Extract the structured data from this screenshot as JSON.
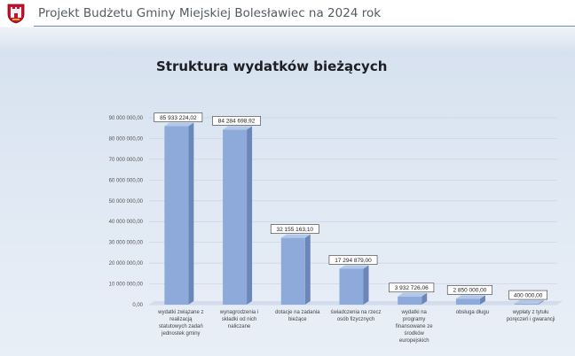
{
  "header": {
    "title": "Projekt Budżetu Gminy Miejskiej Bolesławiec na 2024 rok",
    "crest_icon": "city-coat-of-arms"
  },
  "colors": {
    "bar_front": "#8eaadb",
    "bar_side": "#6b86b8",
    "bar_top": "#b3c7e8",
    "accent_rule": "#6f8bb4"
  },
  "chart_data": {
    "type": "bar",
    "title": "Struktura wydatków bieżących",
    "xlabel": "",
    "ylabel": "",
    "ylim": [
      0,
      90000000
    ],
    "grid": true,
    "yticks": [
      0,
      10000000,
      20000000,
      30000000,
      40000000,
      50000000,
      60000000,
      70000000,
      80000000,
      90000000
    ],
    "ytick_labels": [
      "0,00",
      "10 000 000,00",
      "20 000 000,00",
      "30 000 000,00",
      "40 000 000,00",
      "50 000 000,00",
      "60 000 000,00",
      "70 000 000,00",
      "80 000 000,00",
      "90 000 000,00"
    ],
    "categories": [
      [
        "wydatki związane z",
        "realizacją",
        "statutowych zadań",
        "jednostek gminy"
      ],
      [
        "wynagrodzenia i",
        "składki od nich",
        "naliczane"
      ],
      [
        "dotacje na zadania",
        "bieżące"
      ],
      [
        "świadczenia na rzecz",
        "osób fizycznych"
      ],
      [
        "wydatki na",
        "programy",
        "finansowane ze",
        "środków",
        "europejskich"
      ],
      [
        "obsługa długu"
      ],
      [
        "wypłaty z tytułu",
        "poręczeń i gwarancji"
      ]
    ],
    "values": [
      85933224.02,
      84284698.92,
      32155163.1,
      17294879.0,
      3932726.06,
      2850000.0,
      400000.0
    ],
    "data_labels": [
      "85 933 224,02",
      "84 284 698,92",
      "32 155 163,10",
      "17 294 879,00",
      "3 932 726,06",
      "2 850 000,00",
      "400 000,00"
    ]
  }
}
